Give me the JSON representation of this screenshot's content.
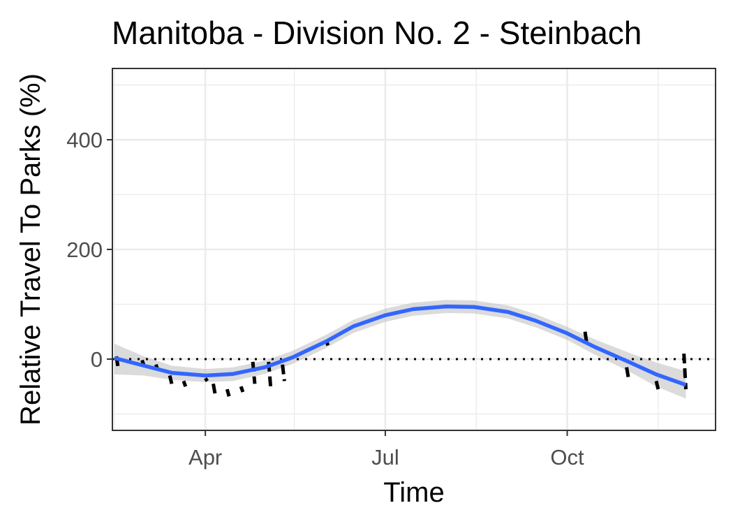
{
  "chart_data": {
    "type": "line",
    "title": "Manitoba - Division No. 2 - Steinbach",
    "xlabel": "Time",
    "ylabel": "Relative Travel To Parks (%)",
    "x_type": "date",
    "xlim": [
      "2020-02-14",
      "2020-12-15"
    ],
    "ylim": [
      -130,
      530
    ],
    "x_ticks": [
      {
        "date": "2020-04-01",
        "label": "Apr"
      },
      {
        "date": "2020-07-01",
        "label": "Jul"
      },
      {
        "date": "2020-10-01",
        "label": "Oct"
      }
    ],
    "x_minor_ticks": [
      "2020-02-15",
      "2020-05-16",
      "2020-08-16",
      "2020-11-16"
    ],
    "y_ticks": [
      0,
      200,
      400
    ],
    "y_minor_ticks": [
      -100,
      100,
      300,
      500
    ],
    "grid": true,
    "reference_line": {
      "y": 0,
      "style": "dotted",
      "color": "#000000"
    },
    "colors": {
      "smooth_line": "#3366ff",
      "ribbon": "#bebebe",
      "observed": "#000000",
      "grid": "#ebebeb",
      "panel_border": "#333333"
    },
    "series": [
      {
        "type": "observed_dashed",
        "points": [
          {
            "x": "2020-02-16",
            "y": 5
          },
          {
            "x": "2020-02-17",
            "y": -18
          },
          {
            "x": "2020-02-29",
            "y": -2
          },
          {
            "x": "2020-03-01",
            "y": -12
          },
          {
            "x": "2020-03-07",
            "y": -10
          },
          {
            "x": "2020-03-08",
            "y": -20
          },
          {
            "x": "2020-03-14",
            "y": -30
          },
          {
            "x": "2020-03-15",
            "y": -45
          },
          {
            "x": "2020-03-21",
            "y": -40
          },
          {
            "x": "2020-03-22",
            "y": -50
          },
          {
            "x": "2020-04-01",
            "y": -35
          },
          {
            "x": "2020-04-02",
            "y": -40
          },
          {
            "x": "2020-04-05",
            "y": -45
          },
          {
            "x": "2020-04-06",
            "y": -65
          },
          {
            "x": "2020-04-12",
            "y": -55
          },
          {
            "x": "2020-04-13",
            "y": -68
          },
          {
            "x": "2020-04-19",
            "y": -50
          },
          {
            "x": "2020-04-20",
            "y": -60
          },
          {
            "x": "2020-04-25",
            "y": -5
          },
          {
            "x": "2020-04-26",
            "y": -45
          },
          {
            "x": "2020-05-03",
            "y": -5
          },
          {
            "x": "2020-05-04",
            "y": -50
          },
          {
            "x": "2020-05-10",
            "y": -10
          },
          {
            "x": "2020-05-11",
            "y": -40
          },
          {
            "x": "2020-06-01",
            "y": 35
          },
          {
            "x": "2020-06-02",
            "y": 25
          },
          {
            "x": "2020-10-10",
            "y": 50
          },
          {
            "x": "2020-10-11",
            "y": 25
          },
          {
            "x": "2020-10-31",
            "y": -15
          },
          {
            "x": "2020-11-01",
            "y": -35
          },
          {
            "x": "2020-11-15",
            "y": -40
          },
          {
            "x": "2020-11-16",
            "y": -55
          },
          {
            "x": "2020-11-29",
            "y": 10
          },
          {
            "x": "2020-11-30",
            "y": -55
          }
        ]
      },
      {
        "type": "smooth",
        "points": [
          {
            "x": "2020-02-15",
            "y": 2,
            "lo": -28,
            "hi": 28
          },
          {
            "x": "2020-03-01",
            "y": -12,
            "lo": -30,
            "hi": 5
          },
          {
            "x": "2020-03-15",
            "y": -25,
            "lo": -38,
            "hi": -12
          },
          {
            "x": "2020-04-01",
            "y": -30,
            "lo": -42,
            "hi": -18
          },
          {
            "x": "2020-04-15",
            "y": -27,
            "lo": -40,
            "hi": -15
          },
          {
            "x": "2020-05-01",
            "y": -15,
            "lo": -27,
            "hi": -3
          },
          {
            "x": "2020-05-15",
            "y": 3,
            "lo": -9,
            "hi": 15
          },
          {
            "x": "2020-06-01",
            "y": 32,
            "lo": 20,
            "hi": 44
          },
          {
            "x": "2020-06-15",
            "y": 60,
            "lo": 48,
            "hi": 72
          },
          {
            "x": "2020-07-01",
            "y": 80,
            "lo": 68,
            "hi": 92
          },
          {
            "x": "2020-07-15",
            "y": 91,
            "lo": 79,
            "hi": 103
          },
          {
            "x": "2020-08-01",
            "y": 96,
            "lo": 84,
            "hi": 108
          },
          {
            "x": "2020-08-15",
            "y": 95,
            "lo": 83,
            "hi": 107
          },
          {
            "x": "2020-09-01",
            "y": 86,
            "lo": 74,
            "hi": 98
          },
          {
            "x": "2020-09-15",
            "y": 70,
            "lo": 58,
            "hi": 82
          },
          {
            "x": "2020-10-01",
            "y": 47,
            "lo": 35,
            "hi": 59
          },
          {
            "x": "2020-10-15",
            "y": 22,
            "lo": 8,
            "hi": 36
          },
          {
            "x": "2020-11-01",
            "y": -5,
            "lo": -22,
            "hi": 12
          },
          {
            "x": "2020-11-15",
            "y": -28,
            "lo": -50,
            "hi": -6
          },
          {
            "x": "2020-11-30",
            "y": -47,
            "lo": -72,
            "hi": -22
          }
        ]
      }
    ]
  }
}
